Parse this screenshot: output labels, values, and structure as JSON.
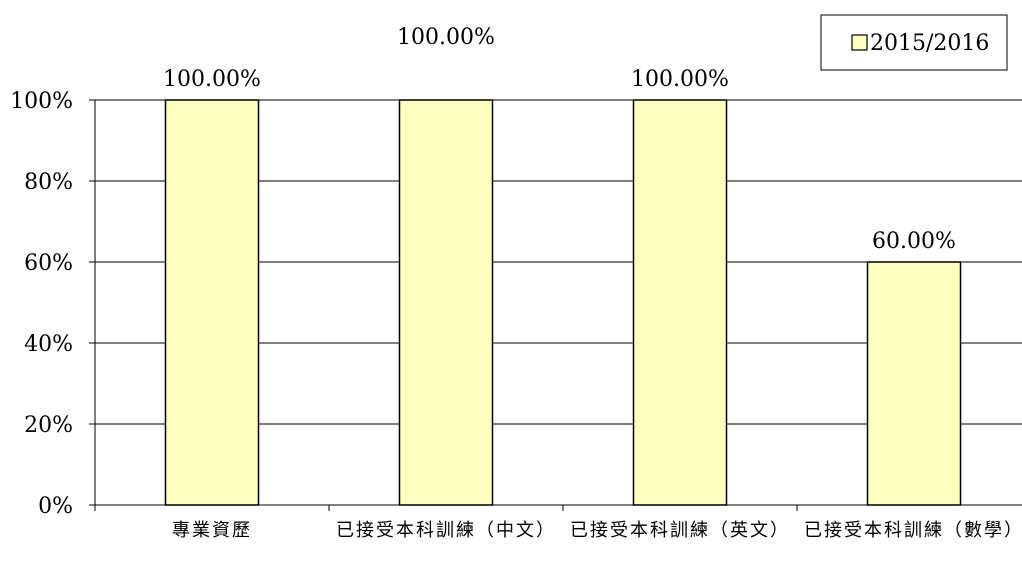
{
  "chart_data": {
    "type": "bar",
    "categories": [
      "專業資歷",
      "已接受本科訓練（中文）",
      "已接受本科訓練（英文）",
      "已接受本科訓練（數學）"
    ],
    "series": [
      {
        "name": "2015/2016",
        "values": [
          100,
          100,
          100,
          60
        ],
        "color": "#ffffc0"
      }
    ],
    "data_labels": [
      "100.00%",
      "100.00%",
      "100.00%",
      "60.00%"
    ],
    "y_ticks": [
      "0%",
      "20%",
      "40%",
      "60%",
      "80%",
      "100%"
    ],
    "ylim": [
      0,
      100
    ],
    "grid": true,
    "legend": "top-right"
  }
}
